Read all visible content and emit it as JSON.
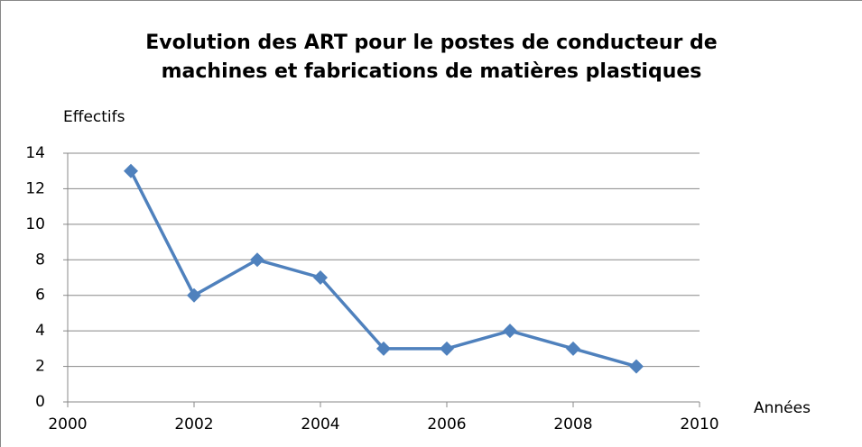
{
  "chart_data": {
    "type": "line",
    "title": "Evolution des ART pour le postes de conducteur de machines et fabrications de matières plastiques",
    "y_label": "Effectifs",
    "x_label": "Années",
    "x": [
      2001,
      2002,
      2003,
      2004,
      2005,
      2006,
      2007,
      2008,
      2009
    ],
    "series": [
      {
        "color": "#4f81bd",
        "values": [
          13,
          6,
          8,
          7,
          3,
          3,
          4,
          3,
          2
        ]
      }
    ],
    "xlim": [
      2000,
      2010
    ],
    "xticks": [
      2000,
      2002,
      2004,
      2006,
      2008,
      2010
    ],
    "ylim": [
      0,
      14
    ],
    "yticks": [
      0,
      2,
      4,
      6,
      8,
      10,
      12,
      14
    ],
    "grid": true
  }
}
